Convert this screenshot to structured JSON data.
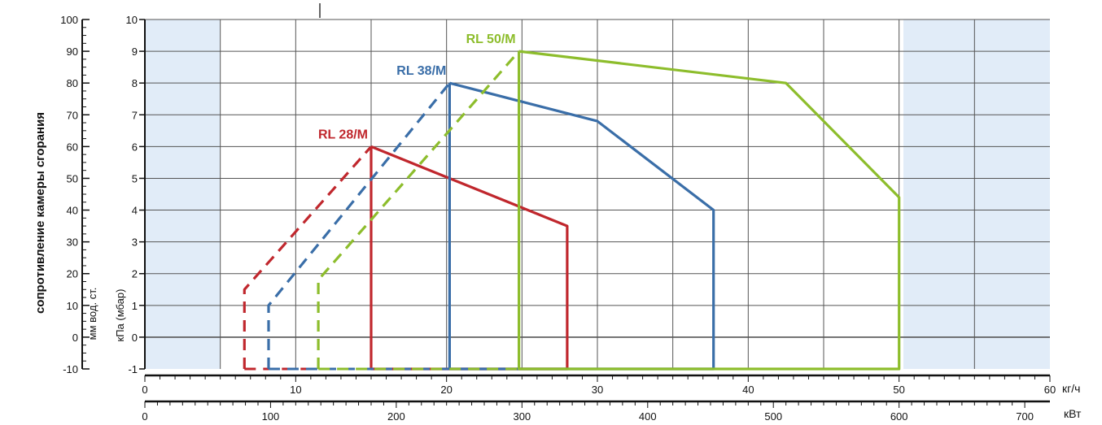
{
  "chart_data": {
    "type": "line",
    "title": "",
    "side_title": "сопротивление камеры сгорания",
    "left_axis": {
      "label": "мм вод. ст.",
      "ticks": [
        "100",
        "90",
        "80",
        "70",
        "60",
        "50",
        "40",
        "30",
        "20",
        "10",
        "0",
        "-10"
      ]
    },
    "right_axis": {
      "label": "кПа (мбар)",
      "ticks": [
        "10",
        "9",
        "8",
        "7",
        "6",
        "5",
        "4",
        "3",
        "2",
        "1",
        "0",
        "-1"
      ],
      "ylim": [
        -1,
        10
      ]
    },
    "x_axis_1": {
      "unit": "кг/ч",
      "ticks": [
        "0",
        "10",
        "20",
        "30",
        "40",
        "50",
        "60"
      ],
      "xlim": [
        0,
        60
      ]
    },
    "x_axis_2": {
      "unit": "кВт",
      "ticks": [
        "0",
        "100",
        "200",
        "300",
        "400",
        "500",
        "600",
        "700"
      ],
      "xlim": [
        0,
        700
      ]
    },
    "grid": true,
    "colors": {
      "plot_bg": "#e1ecf8",
      "grid": "#555555"
    },
    "series": [
      {
        "name": "RL 28/M",
        "color": "#c0272d",
        "dashed": [
          [
            6.6,
            -1
          ],
          [
            6.6,
            1.5
          ],
          [
            15.0,
            6.0
          ]
        ],
        "solid": [
          [
            15.0,
            6.0
          ],
          [
            15.0,
            -1
          ],
          [
            28.0,
            -1
          ],
          [
            28.0,
            3.5
          ],
          [
            15.0,
            6.0
          ]
        ]
      },
      {
        "name": "RL 38/M",
        "color": "#3a6ea8",
        "dashed": [
          [
            8.2,
            -1
          ],
          [
            8.2,
            1.0
          ],
          [
            20.2,
            8.0
          ]
        ],
        "solid": [
          [
            20.2,
            8.0
          ],
          [
            20.2,
            -1
          ],
          [
            37.7,
            -1
          ],
          [
            37.7,
            4.0
          ],
          [
            30.0,
            6.8
          ],
          [
            20.2,
            8.0
          ]
        ]
      },
      {
        "name": "RL 50/M",
        "color": "#8dbd2c",
        "dashed": [
          [
            11.5,
            -1
          ],
          [
            11.5,
            1.8
          ],
          [
            24.8,
            9.0
          ]
        ],
        "solid": [
          [
            24.8,
            9.0
          ],
          [
            24.8,
            -1
          ],
          [
            50.0,
            -1
          ],
          [
            50.0,
            4.4
          ],
          [
            42.5,
            8.0
          ],
          [
            24.8,
            9.0
          ]
        ]
      }
    ]
  }
}
